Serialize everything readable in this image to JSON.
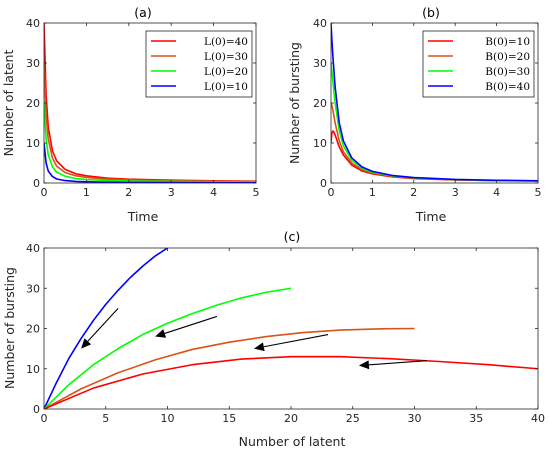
{
  "chart_data": [
    {
      "type": "line",
      "title": "(a)",
      "xlabel": "Time",
      "ylabel": "Number of latent",
      "xlim": [
        0,
        5
      ],
      "ylim": [
        0,
        40
      ],
      "xticks": [
        0,
        1,
        2,
        3,
        4,
        5
      ],
      "yticks": [
        0,
        10,
        20,
        30,
        40
      ],
      "legend": "top-right",
      "series": [
        {
          "name": "L(0)=40",
          "color": "#ff0000",
          "x": [
            0,
            0.05,
            0.1,
            0.2,
            0.3,
            0.5,
            0.75,
            1,
            1.5,
            2,
            3,
            4,
            5
          ],
          "y": [
            40,
            22,
            14,
            8.0,
            5.5,
            3.4,
            2.3,
            1.8,
            1.2,
            0.95,
            0.7,
            0.55,
            0.45
          ]
        },
        {
          "name": "L(0)=30",
          "color": "#d95319",
          "x": [
            0,
            0.05,
            0.1,
            0.2,
            0.3,
            0.5,
            0.75,
            1,
            1.5,
            2,
            3,
            4,
            5
          ],
          "y": [
            30,
            17,
            11,
            6.2,
            4.2,
            2.6,
            1.8,
            1.4,
            0.95,
            0.75,
            0.55,
            0.45,
            0.38
          ]
        },
        {
          "name": "L(0)=20",
          "color": "#00ff00",
          "x": [
            0,
            0.05,
            0.1,
            0.2,
            0.3,
            0.5,
            0.75,
            1,
            1.5,
            2,
            3,
            4,
            5
          ],
          "y": [
            20,
            11,
            7.0,
            4.0,
            2.7,
            1.7,
            1.1,
            0.85,
            0.6,
            0.5,
            0.38,
            0.3,
            0.25
          ]
        },
        {
          "name": "L(0)=10",
          "color": "#0000ff",
          "x": [
            0,
            0.05,
            0.1,
            0.2,
            0.3,
            0.5,
            0.75,
            1,
            1.5,
            2,
            3,
            4,
            5
          ],
          "y": [
            10,
            5.0,
            3.0,
            1.6,
            1.0,
            0.6,
            0.4,
            0.3,
            0.2,
            0.15,
            0.1,
            0.08,
            0.06
          ]
        }
      ]
    },
    {
      "type": "line",
      "title": "(b)",
      "xlabel": "Time",
      "ylabel": "Number of bursting",
      "xlim": [
        0,
        5
      ],
      "ylim": [
        0,
        40
      ],
      "xticks": [
        0,
        1,
        2,
        3,
        4,
        5
      ],
      "yticks": [
        0,
        10,
        20,
        30,
        40
      ],
      "legend": "top-right",
      "series": [
        {
          "name": "B(0)=10",
          "color": "#ff0000",
          "x": [
            0,
            0.02,
            0.05,
            0.1,
            0.2,
            0.3,
            0.5,
            0.75,
            1,
            1.5,
            2,
            3,
            4,
            5
          ],
          "y": [
            10,
            12.5,
            13,
            12,
            9.0,
            7.0,
            4.5,
            3.0,
            2.3,
            1.5,
            1.1,
            0.75,
            0.6,
            0.5
          ]
        },
        {
          "name": "B(0)=20",
          "color": "#d95319",
          "x": [
            0,
            0.02,
            0.05,
            0.1,
            0.2,
            0.3,
            0.5,
            0.75,
            1,
            1.5,
            2,
            3,
            4,
            5
          ],
          "y": [
            20,
            19.5,
            18,
            15,
            10.5,
            7.8,
            5.0,
            3.3,
            2.5,
            1.6,
            1.2,
            0.8,
            0.62,
            0.52
          ]
        },
        {
          "name": "B(0)=30",
          "color": "#00ff00",
          "x": [
            0,
            0.02,
            0.05,
            0.1,
            0.2,
            0.3,
            0.5,
            0.75,
            1,
            1.5,
            2,
            3,
            4,
            5
          ],
          "y": [
            30,
            28,
            25,
            20,
            13,
            9.3,
            5.7,
            3.7,
            2.7,
            1.75,
            1.3,
            0.85,
            0.65,
            0.54
          ]
        },
        {
          "name": "B(0)=40",
          "color": "#0000ff",
          "x": [
            0,
            0.02,
            0.05,
            0.1,
            0.2,
            0.3,
            0.5,
            0.75,
            1,
            1.5,
            2,
            3,
            4,
            5
          ],
          "y": [
            40,
            36,
            31,
            24,
            15,
            10.5,
            6.3,
            4.0,
            2.9,
            1.85,
            1.35,
            0.9,
            0.68,
            0.56
          ]
        }
      ]
    },
    {
      "type": "line",
      "title": "(c)",
      "xlabel": "Number of latent",
      "ylabel": "Number of bursting",
      "xlim": [
        0,
        40
      ],
      "ylim": [
        0,
        40
      ],
      "xticks": [
        0,
        5,
        10,
        15,
        20,
        25,
        30,
        35,
        40
      ],
      "yticks": [
        0,
        10,
        20,
        30,
        40
      ],
      "series": [
        {
          "color": "#0000ff",
          "x": [
            0,
            1,
            2,
            3,
            4,
            5,
            6,
            7,
            8,
            9,
            10
          ],
          "y": [
            0,
            6.5,
            12.5,
            17.5,
            22,
            26,
            29.5,
            32.7,
            35.5,
            38,
            40
          ]
        },
        {
          "color": "#00ff00",
          "x": [
            0,
            2,
            4,
            6,
            8,
            10,
            12,
            14,
            16,
            18,
            20
          ],
          "y": [
            0,
            6,
            11,
            15,
            18.5,
            21.3,
            23.7,
            25.8,
            27.6,
            29,
            30
          ]
        },
        {
          "color": "#d95319",
          "x": [
            0,
            3,
            6,
            9,
            12,
            15,
            18,
            21,
            24,
            27,
            30
          ],
          "y": [
            0,
            5,
            9,
            12.2,
            14.8,
            16.6,
            18,
            19,
            19.6,
            19.9,
            20
          ]
        },
        {
          "color": "#ff0000",
          "x": [
            0,
            4,
            8,
            12,
            16,
            20,
            24,
            28,
            32,
            36,
            40
          ],
          "y": [
            0,
            5.2,
            8.7,
            11,
            12.4,
            13,
            13,
            12.5,
            11.8,
            11,
            10
          ]
        }
      ],
      "arrows": [
        {
          "from": [
            31,
            12
          ],
          "to": [
            25.5,
            10.8
          ]
        },
        {
          "from": [
            23,
            18.5
          ],
          "to": [
            17,
            15
          ]
        },
        {
          "from": [
            14,
            23
          ],
          "to": [
            9,
            18
          ]
        },
        {
          "from": [
            6,
            25
          ],
          "to": [
            3,
            15
          ]
        }
      ]
    }
  ]
}
